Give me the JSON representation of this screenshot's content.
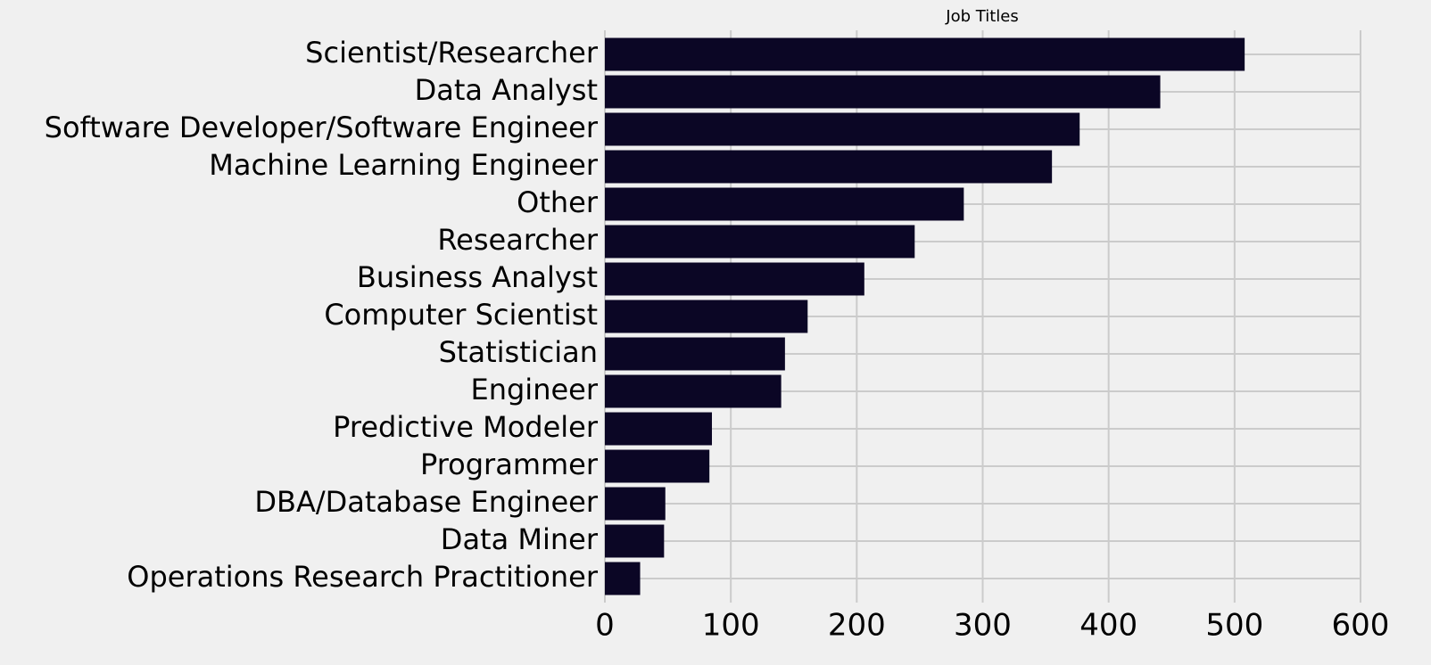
{
  "chart_data": {
    "type": "barh",
    "title": "Job Titles",
    "categories": [
      "Scientist/Researcher",
      "Data Analyst",
      "Software Developer/Software Engineer",
      "Machine Learning Engineer",
      "Other",
      "Researcher",
      "Business Analyst",
      "Computer Scientist",
      "Statistician",
      "Engineer",
      "Predictive Modeler",
      "Programmer",
      "DBA/Database Engineer",
      "Data Miner",
      "Operations Research Practitioner"
    ],
    "values": [
      508,
      441,
      377,
      355,
      285,
      246,
      206,
      161,
      143,
      140,
      85,
      83,
      48,
      47,
      28
    ],
    "color": "#0b0625",
    "xlim": [
      0,
      600
    ],
    "xticks": [
      0,
      100,
      200,
      300,
      400,
      500,
      600
    ],
    "grid": true
  }
}
